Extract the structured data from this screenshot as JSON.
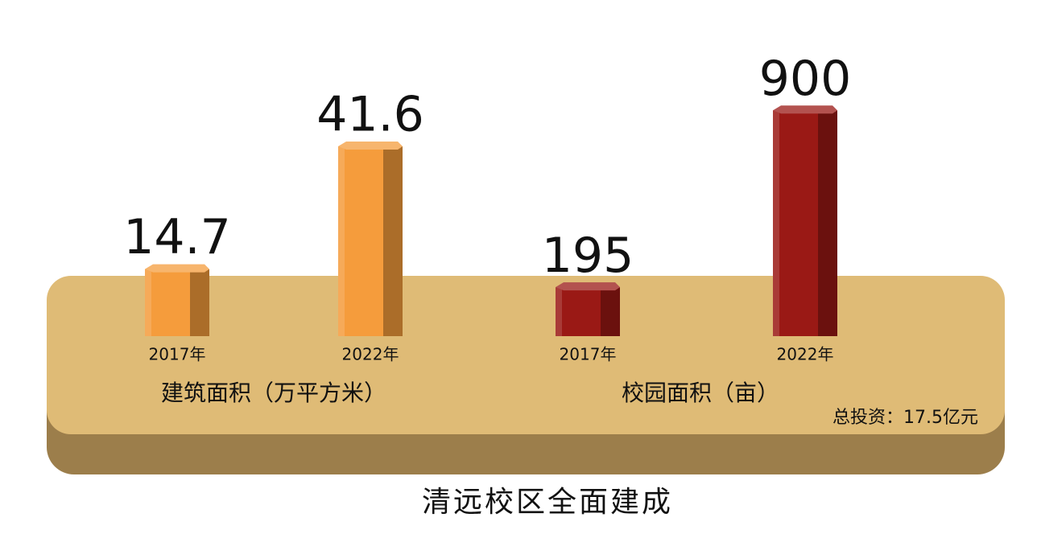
{
  "title": "清远校区全面建成",
  "note": "总投资：17.5亿元",
  "chart_data": [
    {
      "type": "bar",
      "title": "建筑面积（万平方米）",
      "categories": [
        "2017年",
        "2022年"
      ],
      "values": [
        14.7,
        41.6
      ],
      "color": "#f59c3c",
      "ylim": [
        0,
        55
      ]
    },
    {
      "type": "bar",
      "title": "校园面积（亩）",
      "categories": [
        "2017年",
        "2022年"
      ],
      "values": [
        195,
        900
      ],
      "color": "#9a1915",
      "ylim": [
        0,
        1000
      ]
    }
  ]
}
